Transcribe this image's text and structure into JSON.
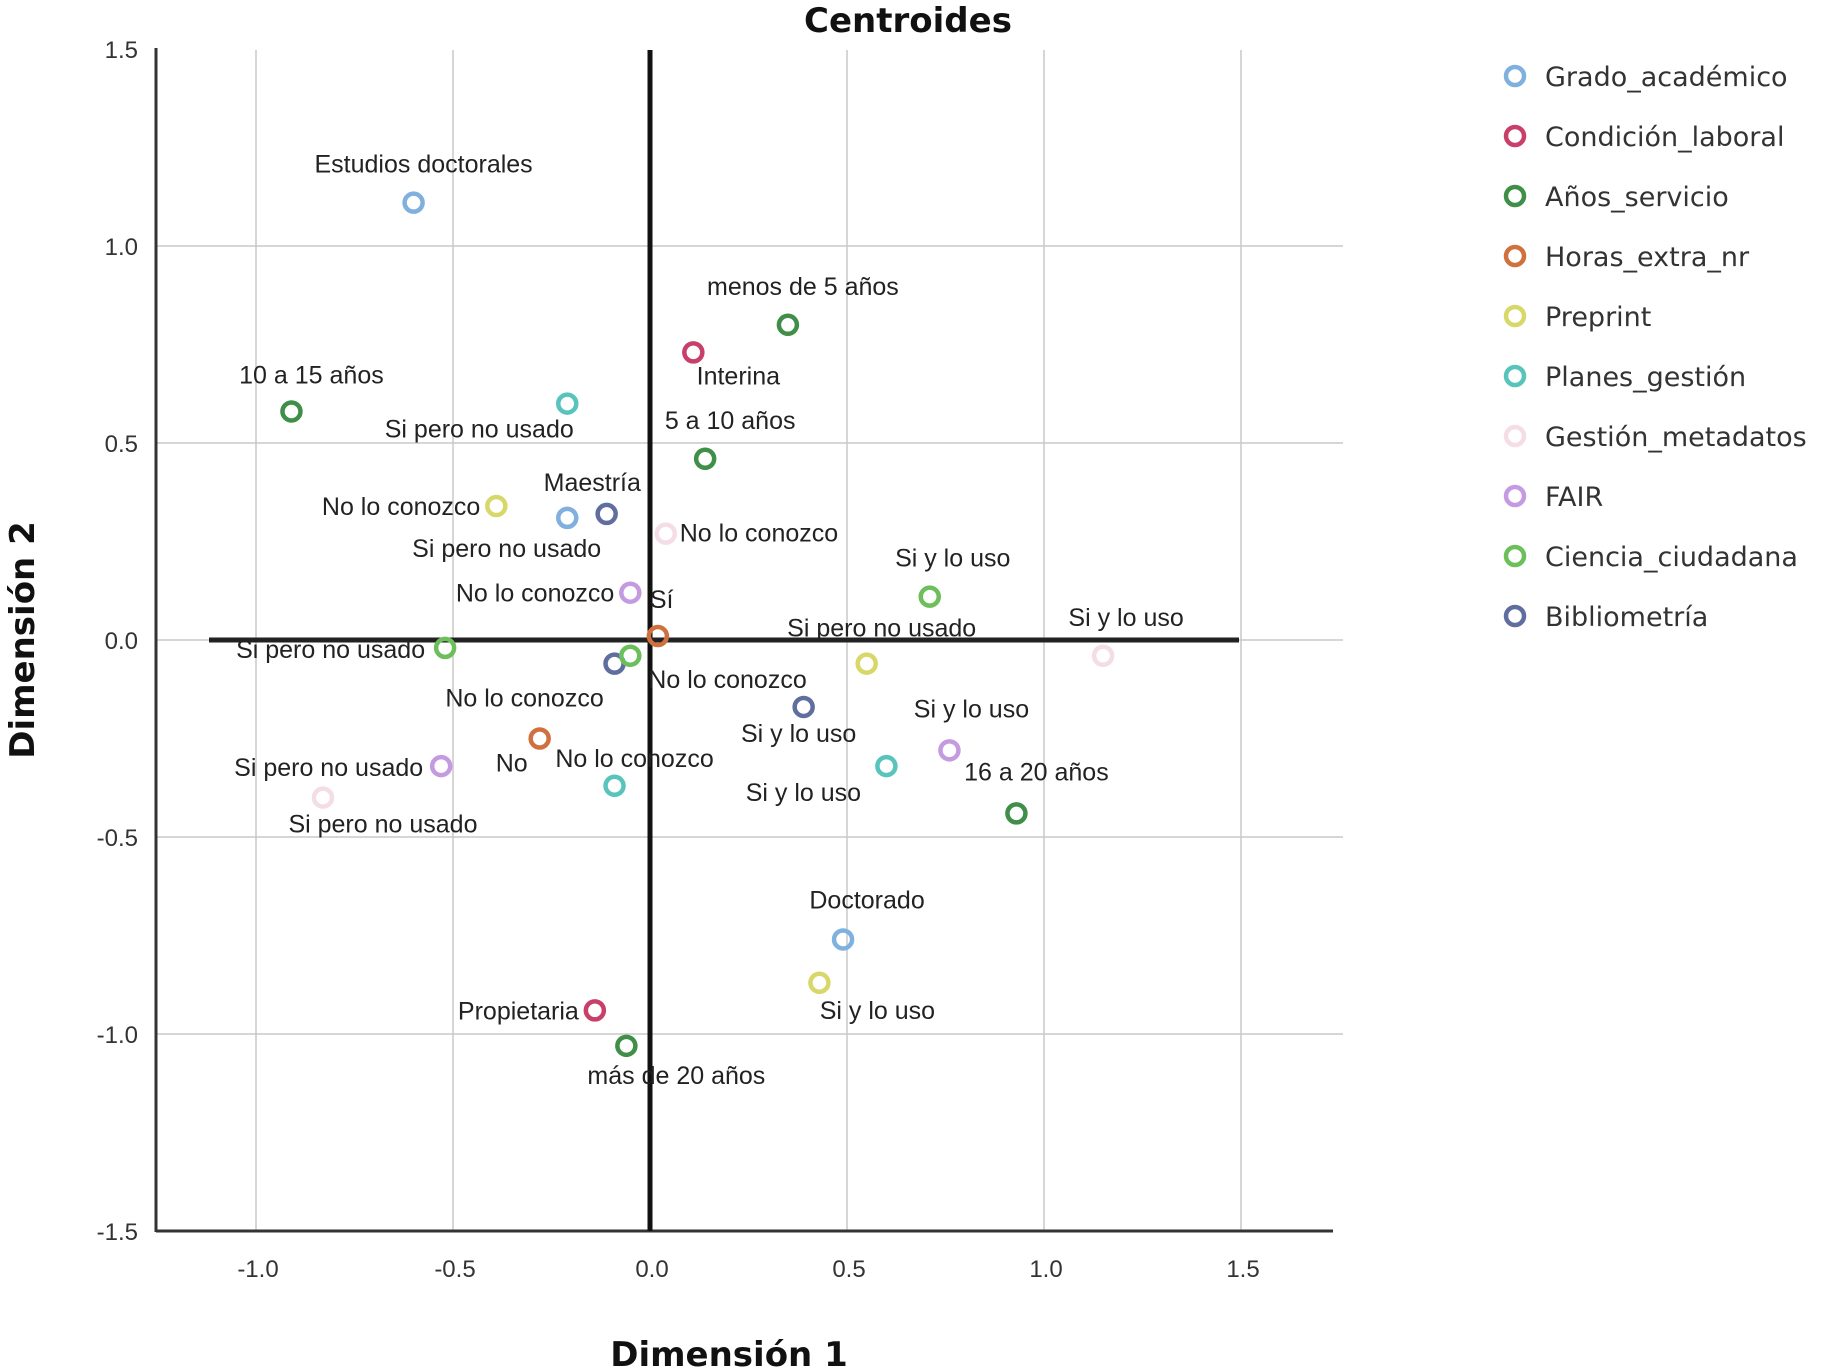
{
  "chart_data": {
    "type": "scatter",
    "title": "Centroides",
    "xlabel": "Dimensión 1",
    "ylabel": "Dimensión 2",
    "xlim": [
      -1.25,
      1.73
    ],
    "ylim": [
      -1.5,
      1.5
    ],
    "xticks": [
      -1.0,
      -0.5,
      0.0,
      0.5,
      1.0,
      1.5
    ],
    "yticks": [
      1.5,
      1.0,
      0.5,
      0.0,
      -0.5,
      -1.0,
      -1.5
    ],
    "xtick_labels": [
      "-1.0",
      "-0.5",
      "0.0",
      "0.5",
      "1.0",
      "1.5"
    ],
    "ytick_labels": [
      "1.5",
      "1.0",
      "0.5",
      "0.0",
      "-0.5",
      "-1.0",
      "-1.5"
    ],
    "grid": true,
    "reference_lines": {
      "x": 0.0,
      "y": 0.0
    },
    "legend_position": "right",
    "series": [
      {
        "name": "Grado_académico",
        "color": "#7fb0de"
      },
      {
        "name": "Condición_laboral",
        "color": "#c8406a"
      },
      {
        "name": "Años_servicio",
        "color": "#3f8f48"
      },
      {
        "name": "Horas_extra_nr",
        "color": "#d0703f"
      },
      {
        "name": "Preprint",
        "color": "#d8d86a"
      },
      {
        "name": "Planes_gestión",
        "color": "#58c4bc"
      },
      {
        "name": "Gestión_metadatos",
        "color": "#f4dde6"
      },
      {
        "name": "FAIR",
        "color": "#c49ae0"
      },
      {
        "name": "Ciencia_ciudadana",
        "color": "#6cbf5a"
      },
      {
        "name": "Bibliometría",
        "color": "#5f6e9f"
      }
    ],
    "points": [
      {
        "series": "Grado_académico",
        "label": "Estudios doctorales",
        "x": -0.6,
        "y": 1.11
      },
      {
        "series": "Años_servicio",
        "label": "10 a 15 años",
        "x": -0.91,
        "y": 0.58
      },
      {
        "series": "Planes_gestión",
        "label": "Si pero no usado",
        "x": -0.21,
        "y": 0.6
      },
      {
        "series": "Años_servicio",
        "label": "menos de 5 años",
        "x": 0.35,
        "y": 0.8
      },
      {
        "series": "Condición_laboral",
        "label": "Interina",
        "x": 0.11,
        "y": 0.73
      },
      {
        "series": "Años_servicio",
        "label": "5 a 10 años",
        "x": 0.14,
        "y": 0.46
      },
      {
        "series": "Preprint",
        "label": "No lo conozco",
        "x": -0.39,
        "y": 0.34
      },
      {
        "series": "Grado_académico",
        "label": "Maestría",
        "x": -0.21,
        "y": 0.31
      },
      {
        "series": "Bibliometría",
        "label": "Si pero no usado",
        "x": -0.11,
        "y": 0.32
      },
      {
        "series": "Gestión_metadatos",
        "label": "No lo conozco",
        "x": 0.04,
        "y": 0.27
      },
      {
        "series": "Ciencia_ciudadana",
        "label": "Si y lo uso",
        "x": 0.71,
        "y": 0.11
      },
      {
        "series": "FAIR",
        "label": "No lo conozco",
        "x": -0.05,
        "y": 0.12
      },
      {
        "series": "Horas_extra_nr",
        "label": "Sí",
        "x": 0.02,
        "y": 0.01
      },
      {
        "series": "Ciencia_ciudadana",
        "label": "Si pero no usado",
        "x": -0.52,
        "y": -0.02
      },
      {
        "series": "Bibliometría",
        "label": "No lo conozco",
        "x": -0.09,
        "y": -0.06
      },
      {
        "series": "Ciencia_ciudadana",
        "label": "No lo conozco",
        "x": -0.05,
        "y": -0.04
      },
      {
        "series": "Preprint",
        "label": "Si pero no usado",
        "x": 0.55,
        "y": -0.06
      },
      {
        "series": "Gestión_metadatos",
        "label": "Si y lo uso",
        "x": 1.15,
        "y": -0.04
      },
      {
        "series": "Bibliometría",
        "label": "Si y lo uso",
        "x": 0.39,
        "y": -0.17
      },
      {
        "series": "Horas_extra_nr",
        "label": "No",
        "x": -0.28,
        "y": -0.25
      },
      {
        "series": "FAIR",
        "label": "Si y lo uso",
        "x": 0.76,
        "y": -0.28
      },
      {
        "series": "FAIR",
        "label": "Si pero no usado",
        "x": -0.53,
        "y": -0.32
      },
      {
        "series": "Planes_gestión",
        "label": "No lo conozco",
        "x": -0.09,
        "y": -0.37
      },
      {
        "series": "Planes_gestión",
        "label": "Si y lo uso",
        "x": 0.6,
        "y": -0.32
      },
      {
        "series": "Gestión_metadatos",
        "label": "Si pero no usado",
        "x": -0.83,
        "y": -0.4
      },
      {
        "series": "Años_servicio",
        "label": "16 a 20 años",
        "x": 0.93,
        "y": -0.44
      },
      {
        "series": "Grado_académico",
        "label": "Doctorado",
        "x": 0.49,
        "y": -0.76
      },
      {
        "series": "Preprint",
        "label": "Si y lo uso",
        "x": 0.43,
        "y": -0.87
      },
      {
        "series": "Condición_laboral",
        "label": "Propietaria",
        "x": -0.14,
        "y": -0.94
      },
      {
        "series": "Años_servicio",
        "label": "más de 20 años",
        "x": -0.06,
        "y": -1.03
      }
    ]
  }
}
